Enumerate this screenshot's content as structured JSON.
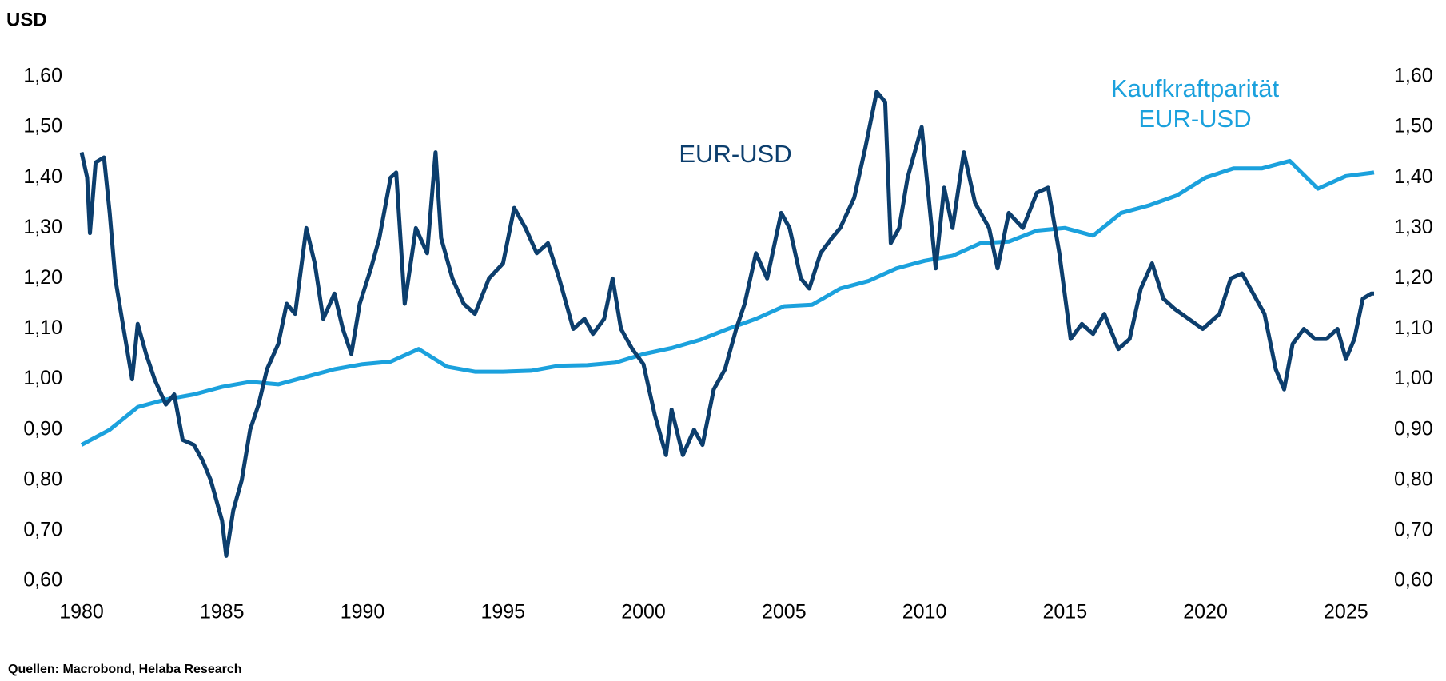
{
  "chart_data": {
    "type": "line",
    "y_label": "USD",
    "source": "Quellen: Macrobond, Helaba Research",
    "xlim": [
      1980,
      2026
    ],
    "xticks": [
      1980,
      1985,
      1990,
      1995,
      2000,
      2005,
      2010,
      2015,
      2020,
      2025
    ],
    "ylim": [
      0.6,
      1.6
    ],
    "yticks": [
      {
        "value": 0.6,
        "label": "0,60"
      },
      {
        "value": 0.7,
        "label": "0,70"
      },
      {
        "value": 0.8,
        "label": "0,80"
      },
      {
        "value": 0.9,
        "label": "0,90"
      },
      {
        "value": 1.0,
        "label": "1,00"
      },
      {
        "value": 1.1,
        "label": "1,10"
      },
      {
        "value": 1.2,
        "label": "1,20"
      },
      {
        "value": 1.3,
        "label": "1,30"
      },
      {
        "value": 1.4,
        "label": "1,40"
      },
      {
        "value": 1.5,
        "label": "1,50"
      },
      {
        "value": 1.6,
        "label": "1,60"
      }
    ],
    "y2lim": [
      0.6,
      1.6
    ],
    "y2ticks": [
      {
        "value": 0.6,
        "label": "0,60"
      },
      {
        "value": 0.7,
        "label": "0,70"
      },
      {
        "value": 0.8,
        "label": "0,80"
      },
      {
        "value": 0.9,
        "label": "0,90"
      },
      {
        "value": 1.0,
        "label": "1,00"
      },
      {
        "value": 1.1,
        "label": "1,10"
      },
      {
        "value": 1.2,
        "label": "1,20"
      },
      {
        "value": 1.3,
        "label": "1,30"
      },
      {
        "value": 1.4,
        "label": "1,40"
      },
      {
        "value": 1.5,
        "label": "1,50"
      },
      {
        "value": 1.6,
        "label": "1,60"
      }
    ],
    "grid": false,
    "series": [
      {
        "name": "EUR-USD",
        "color": "#0c3e6d",
        "x": [
          1980.0,
          1980.2,
          1980.3,
          1980.5,
          1980.8,
          1981.0,
          1981.2,
          1981.5,
          1981.8,
          1982.0,
          1982.3,
          1982.6,
          1983.0,
          1983.3,
          1983.6,
          1984.0,
          1984.3,
          1984.6,
          1985.0,
          1985.15,
          1985.4,
          1985.7,
          1986.0,
          1986.3,
          1986.6,
          1987.0,
          1987.3,
          1987.6,
          1988.0,
          1988.3,
          1988.6,
          1989.0,
          1989.3,
          1989.6,
          1989.9,
          1990.3,
          1990.6,
          1991.0,
          1991.2,
          1991.5,
          1991.9,
          1992.3,
          1992.6,
          1992.8,
          1993.2,
          1993.6,
          1994.0,
          1994.5,
          1995.0,
          1995.4,
          1995.8,
          1996.2,
          1996.6,
          1997.0,
          1997.5,
          1997.9,
          1998.2,
          1998.6,
          1998.9,
          1999.2,
          1999.6,
          2000.0,
          2000.4,
          2000.8,
          2001.0,
          2001.4,
          2001.8,
          2002.1,
          2002.5,
          2002.9,
          2003.3,
          2003.6,
          2004.0,
          2004.4,
          2004.9,
          2005.2,
          2005.6,
          2005.9,
          2006.3,
          2006.7,
          2007.0,
          2007.5,
          2007.9,
          2008.3,
          2008.6,
          2008.8,
          2009.1,
          2009.4,
          2009.9,
          2010.4,
          2010.7,
          2011.0,
          2011.4,
          2011.8,
          2012.3,
          2012.6,
          2013.0,
          2013.5,
          2014.0,
          2014.4,
          2014.8,
          2015.2,
          2015.6,
          2016.0,
          2016.4,
          2016.9,
          2017.3,
          2017.7,
          2018.1,
          2018.5,
          2018.9,
          2019.4,
          2019.9,
          2020.5,
          2020.9,
          2021.3,
          2021.7,
          2022.1,
          2022.5,
          2022.8,
          2023.1,
          2023.5,
          2023.9,
          2024.3,
          2024.7,
          2025.0,
          2025.3,
          2025.6,
          2025.9,
          2026.0
        ],
        "values": [
          1.45,
          1.4,
          1.29,
          1.43,
          1.44,
          1.33,
          1.2,
          1.1,
          1.0,
          1.11,
          1.05,
          1.0,
          0.95,
          0.97,
          0.88,
          0.87,
          0.84,
          0.8,
          0.72,
          0.65,
          0.74,
          0.8,
          0.9,
          0.95,
          1.02,
          1.07,
          1.15,
          1.13,
          1.3,
          1.23,
          1.12,
          1.17,
          1.1,
          1.05,
          1.15,
          1.22,
          1.28,
          1.4,
          1.41,
          1.15,
          1.3,
          1.25,
          1.45,
          1.28,
          1.2,
          1.15,
          1.13,
          1.2,
          1.23,
          1.34,
          1.3,
          1.25,
          1.27,
          1.2,
          1.1,
          1.12,
          1.09,
          1.12,
          1.2,
          1.1,
          1.06,
          1.03,
          0.93,
          0.85,
          0.94,
          0.85,
          0.9,
          0.87,
          0.98,
          1.02,
          1.1,
          1.15,
          1.25,
          1.2,
          1.33,
          1.3,
          1.2,
          1.18,
          1.25,
          1.28,
          1.3,
          1.36,
          1.46,
          1.57,
          1.55,
          1.27,
          1.3,
          1.4,
          1.5,
          1.22,
          1.38,
          1.3,
          1.45,
          1.35,
          1.3,
          1.22,
          1.33,
          1.3,
          1.37,
          1.38,
          1.25,
          1.08,
          1.11,
          1.09,
          1.13,
          1.06,
          1.08,
          1.18,
          1.23,
          1.16,
          1.14,
          1.12,
          1.1,
          1.13,
          1.2,
          1.21,
          1.17,
          1.13,
          1.02,
          0.98,
          1.07,
          1.1,
          1.08,
          1.08,
          1.1,
          1.04,
          1.08,
          1.16,
          1.17,
          1.17
        ]
      },
      {
        "name": "Kaufkraftparität EUR-USD",
        "color": "#1ba1dd",
        "x": [
          1980,
          1981,
          1982,
          1983,
          1984,
          1985,
          1986,
          1987,
          1988,
          1989,
          1990,
          1991,
          1992,
          1993,
          1994,
          1995,
          1996,
          1997,
          1998,
          1999,
          2000,
          2001,
          2002,
          2003,
          2004,
          2005,
          2006,
          2007,
          2008,
          2009,
          2010,
          2011,
          2012,
          2013,
          2014,
          2015,
          2016,
          2017,
          2018,
          2019,
          2020,
          2021,
          2022,
          2023,
          2024,
          2025,
          2026
        ],
        "values": [
          0.87,
          0.9,
          0.945,
          0.96,
          0.97,
          0.985,
          0.995,
          0.99,
          1.005,
          1.02,
          1.03,
          1.035,
          1.06,
          1.025,
          1.015,
          1.015,
          1.017,
          1.027,
          1.028,
          1.033,
          1.05,
          1.062,
          1.078,
          1.1,
          1.12,
          1.145,
          1.148,
          1.18,
          1.195,
          1.22,
          1.235,
          1.245,
          1.27,
          1.273,
          1.295,
          1.3,
          1.285,
          1.33,
          1.345,
          1.365,
          1.4,
          1.418,
          1.418,
          1.433,
          1.378,
          1.403,
          1.41
        ]
      }
    ]
  }
}
